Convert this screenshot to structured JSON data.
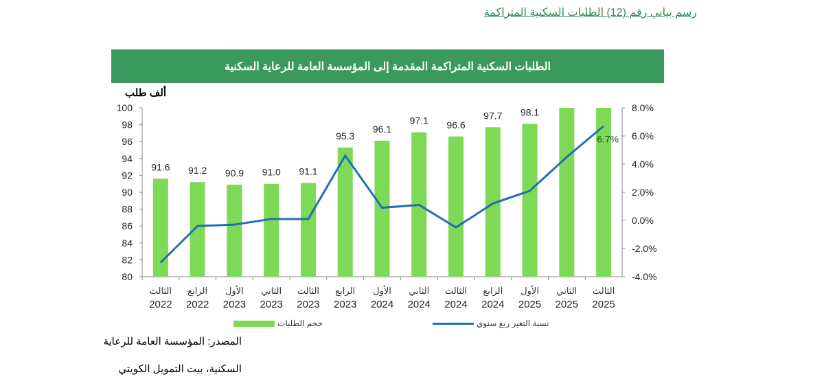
{
  "caption": "رسم بياني رقم (12) الطلبات السكنية المتراكمة",
  "chart_data": {
    "type": "bar+line",
    "title": "الطلبات السكنية المتراكمة المقدمة إلى المؤسسة العامة للرعاية السكنية",
    "ylabel": "ألف طلب",
    "ylim": [
      80,
      100
    ],
    "y2lim": [
      -4,
      8
    ],
    "yticks": [
      "80",
      "82",
      "84",
      "86",
      "88",
      "90",
      "92",
      "94",
      "96",
      "98",
      "100"
    ],
    "y2ticks": [
      "-4.0%",
      "-2.0%",
      "0.0%",
      "2.0%",
      "4.0%",
      "6.0%",
      "8.0%"
    ],
    "categories": [
      [
        "الثالث",
        "2022"
      ],
      [
        "الرابع",
        "2022"
      ],
      [
        "الأول",
        "2023"
      ],
      [
        "الثاني",
        "2023"
      ],
      [
        "الثالث",
        "2023"
      ],
      [
        "الرابع",
        "2023"
      ],
      [
        "الأول",
        "2024"
      ],
      [
        "الثاني",
        "2024"
      ],
      [
        "الثالث",
        "2024"
      ],
      [
        "الرابع",
        "2024"
      ],
      [
        "الأول",
        "2025"
      ],
      [
        "الثاني",
        "2025"
      ],
      [
        "الثالث",
        "2025"
      ]
    ],
    "series": [
      {
        "name": "حجم الطلبات",
        "type": "bar",
        "color": "#7ed957",
        "values": [
          91.6,
          91.2,
          90.9,
          91.0,
          91.1,
          95.3,
          96.1,
          97.1,
          96.6,
          97.7,
          98.1,
          100,
          100
        ],
        "labels": [
          "91.6",
          "91.2",
          "90.9",
          "91.0",
          "91.1",
          "95.3",
          "96.1",
          "97.1",
          "96.6",
          "97.7",
          "98.1",
          "",
          ""
        ]
      },
      {
        "name": "نسبة التغير ربع سنوي",
        "type": "line",
        "axis": "right",
        "color": "#1f6fb5",
        "values": [
          -3.0,
          -0.4,
          -0.3,
          0.1,
          0.1,
          4.6,
          0.9,
          1.1,
          -0.5,
          1.2,
          2.1,
          4.5,
          6.7
        ],
        "labels": [
          "",
          "",
          "",
          "",
          "",
          "",
          "",
          "",
          "",
          "",
          "",
          "",
          "6.7%"
        ]
      }
    ],
    "grid": false,
    "legend": "bottom"
  },
  "source": [
    "المصدر: المؤسسة العامة للرعاية",
    "السكنية، بيت التمويل الكويتي"
  ]
}
